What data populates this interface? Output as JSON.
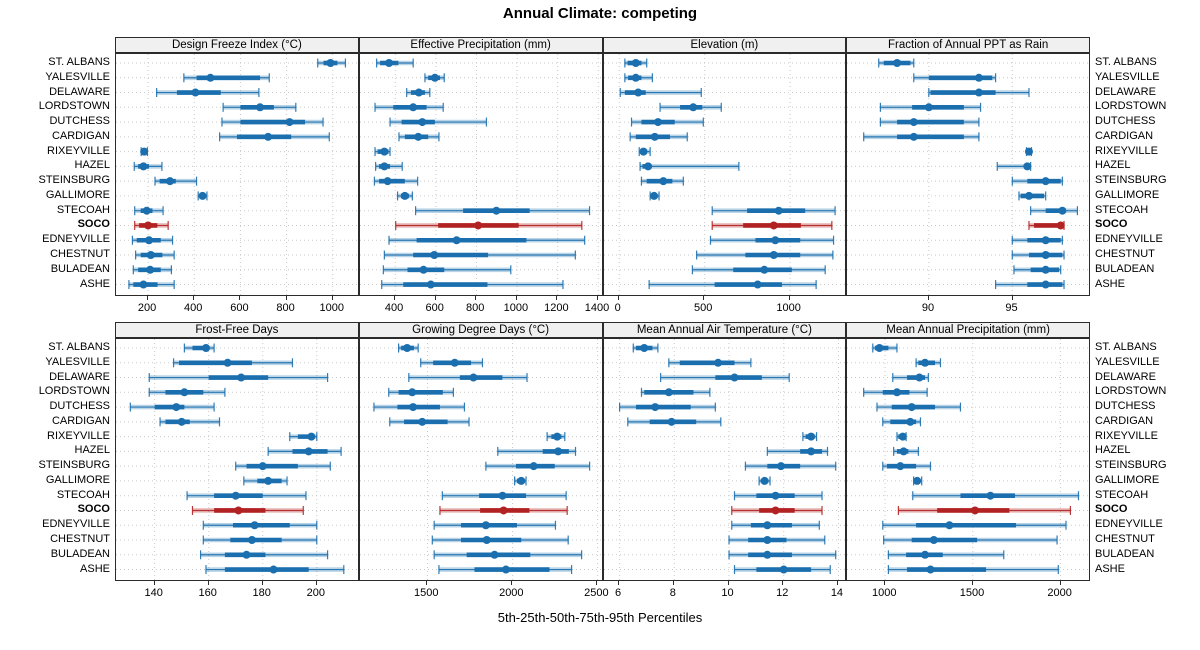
{
  "title": "Annual Climate: competing",
  "xaxis_title": "5th-25th-50th-75th-95th Percentiles",
  "colors": {
    "series": "#1B6FAE",
    "highlight": "#B22222",
    "grid": "#c9c9c9",
    "border": "#2b2b2b",
    "strip_bg": "#f0f0f0"
  },
  "sites": [
    "ST. ALBANS",
    "YALESVILLE",
    "DELAWARE",
    "LORDSTOWN",
    "DUTCHESS",
    "CARDIGAN",
    "RIXEYVILLE",
    "HAZEL",
    "STEINSBURG",
    "GALLIMORE",
    "STECOAH",
    "SOCO",
    "EDNEYVILLE",
    "CHESTNUT",
    "BULADEAN",
    "ASHE"
  ],
  "highlight_site": "SOCO",
  "chart_data": {
    "type": "dotplot-percentiles",
    "percentile_labels": [
      "5th",
      "25th",
      "50th",
      "75th",
      "95th"
    ],
    "layout": {
      "rows": 2,
      "cols": 4,
      "grid": "dotted",
      "legend": "none"
    },
    "panels": [
      {
        "strip": "Design Freeze Index (°C)",
        "ticks": [
          200,
          400,
          600,
          800,
          1000
        ],
        "xlim": [
          61,
          1117
        ],
        "series": [
          [
            935,
            960,
            990,
            1020,
            1055
          ],
          [
            355,
            410,
            470,
            685,
            725
          ],
          [
            237,
            325,
            405,
            515,
            680
          ],
          [
            525,
            600,
            685,
            745,
            840
          ],
          [
            520,
            600,
            813,
            880,
            958
          ],
          [
            510,
            585,
            720,
            820,
            985
          ],
          [
            170,
            176,
            183,
            190,
            197
          ],
          [
            140,
            157,
            180,
            204,
            260
          ],
          [
            230,
            250,
            295,
            320,
            410
          ],
          [
            417,
            425,
            436,
            448,
            455
          ],
          [
            142,
            168,
            194,
            219,
            265
          ],
          [
            142,
            161,
            200,
            240,
            287
          ],
          [
            132,
            151,
            204,
            255,
            306
          ],
          [
            146,
            168,
            212,
            262,
            313
          ],
          [
            136,
            157,
            209,
            255,
            301
          ],
          [
            117,
            136,
            180,
            241,
            313
          ]
        ]
      },
      {
        "strip": "Effective Precipitation (mm)",
        "ticks": [
          400,
          600,
          800,
          1000,
          1200,
          1400
        ],
        "xlim": [
          226,
          1427
        ],
        "series": [
          [
            308,
            325,
            369,
            415,
            488
          ],
          [
            546,
            562,
            595,
            620,
            641
          ],
          [
            456,
            477,
            516,
            546,
            570
          ],
          [
            300,
            390,
            488,
            554,
            636
          ],
          [
            374,
            431,
            533,
            595,
            849
          ],
          [
            418,
            447,
            513,
            562,
            615
          ],
          [
            300,
            313,
            346,
            366,
            374
          ],
          [
            303,
            320,
            346,
            374,
            434
          ],
          [
            297,
            320,
            362,
            447,
            510
          ],
          [
            411,
            428,
            447,
            467,
            484
          ],
          [
            500,
            734,
            898,
            1062,
            1357
          ],
          [
            402,
            611,
            808,
            1008,
            1319
          ],
          [
            369,
            505,
            702,
            1046,
            1333
          ],
          [
            346,
            488,
            592,
            857,
            1287
          ],
          [
            341,
            460,
            539,
            641,
            969
          ],
          [
            333,
            439,
            575,
            854,
            1226
          ]
        ]
      },
      {
        "strip": "Elevation (m)",
        "ticks": [
          0,
          500,
          1000
        ],
        "xlim": [
          -89,
          1337
        ],
        "series": [
          [
            33,
            49,
            97,
            130,
            161
          ],
          [
            33,
            52,
            97,
            130,
            194
          ],
          [
            6,
            33,
            111,
            155,
            480
          ],
          [
            239,
            356,
            433,
            486,
            597
          ],
          [
            72,
            130,
            227,
            325,
            492
          ],
          [
            64,
            97,
            208,
            297,
            398
          ],
          [
            117,
            122,
            142,
            161,
            181
          ],
          [
            122,
            136,
            169,
            185,
            700
          ],
          [
            130,
            161,
            258,
            311,
            375
          ],
          [
            181,
            188,
            204,
            220,
            233
          ],
          [
            544,
            748,
            933,
            1088,
            1263
          ],
          [
            544,
            725,
            904,
            1063,
            1244
          ],
          [
            534,
            797,
            913,
            1059,
            1254
          ],
          [
            453,
            738,
            904,
            1059,
            1250
          ],
          [
            428,
            667,
            849,
            1010,
            1205
          ],
          [
            175,
            558,
            810,
            952,
            1152
          ]
        ]
      },
      {
        "strip": "Fraction of Annual PPT as Rain",
        "ticks": [
          90,
          95
        ],
        "xlim": [
          85.1,
          99.7
        ],
        "series": [
          [
            87.0,
            87.3,
            88.1,
            88.9,
            89.1
          ],
          [
            89.1,
            90.0,
            93.0,
            93.8,
            94.0
          ],
          [
            90.0,
            90.1,
            93.0,
            94.0,
            96.0
          ],
          [
            87.1,
            89.0,
            90.0,
            92.1,
            93.1
          ],
          [
            87.1,
            88.1,
            89.1,
            92.1,
            93.0
          ],
          [
            86.1,
            88.1,
            89.1,
            92.1,
            93.0
          ],
          [
            95.85,
            95.95,
            96.0,
            96.1,
            96.15
          ],
          [
            94.1,
            95.7,
            95.9,
            96.0,
            96.1
          ],
          [
            95.0,
            95.9,
            97.0,
            97.9,
            98.0
          ],
          [
            95.4,
            95.5,
            96.0,
            96.9,
            97.0
          ],
          [
            96.1,
            97.0,
            98.0,
            98.2,
            98.9
          ],
          [
            96.0,
            96.3,
            97.9,
            98.0,
            98.1
          ],
          [
            95.0,
            95.9,
            97.0,
            97.9,
            98.0
          ],
          [
            95.0,
            96.0,
            97.0,
            98.0,
            98.1
          ],
          [
            95.1,
            96.1,
            97.0,
            97.8,
            97.9
          ],
          [
            94.0,
            95.9,
            97.0,
            98.0,
            98.1
          ]
        ]
      },
      {
        "strip": "Frost-Free Days",
        "ticks": [
          140,
          160,
          180,
          200
        ],
        "xlim": [
          125.7,
          215.9
        ],
        "series": [
          [
            151,
            154,
            159,
            160,
            162
          ],
          [
            147,
            149,
            167,
            176,
            191
          ],
          [
            138,
            160,
            172,
            182,
            204
          ],
          [
            138,
            144,
            151,
            158,
            166
          ],
          [
            131,
            140,
            148,
            151,
            162
          ],
          [
            142,
            144,
            150,
            153,
            164
          ],
          [
            190,
            193,
            198,
            199,
            200
          ],
          [
            182,
            191,
            197,
            204,
            209
          ],
          [
            170,
            174,
            180,
            193,
            205
          ],
          [
            173,
            178,
            182,
            187,
            189
          ],
          [
            152,
            162,
            170,
            180,
            196
          ],
          [
            154,
            162,
            171,
            181,
            195
          ],
          [
            158,
            169,
            177,
            190,
            200
          ],
          [
            158,
            168,
            176,
            187,
            200
          ],
          [
            157,
            166,
            174,
            181,
            204
          ],
          [
            159,
            166,
            184,
            197,
            210
          ]
        ]
      },
      {
        "strip": "Growing Degree Days (°C)",
        "ticks": [
          1500,
          2000,
          2500
        ],
        "xlim": [
          1103,
          2536
        ],
        "series": [
          [
            1330,
            1345,
            1380,
            1420,
            1445
          ],
          [
            1460,
            1533,
            1660,
            1756,
            1823
          ],
          [
            1390,
            1690,
            1770,
            1940,
            2085
          ],
          [
            1272,
            1330,
            1410,
            1590,
            1652
          ],
          [
            1185,
            1323,
            1415,
            1573,
            1717
          ],
          [
            1278,
            1362,
            1469,
            1618,
            1744
          ],
          [
            2203,
            2228,
            2262,
            2287,
            2307
          ],
          [
            1913,
            2177,
            2268,
            2331,
            2370
          ],
          [
            1843,
            2020,
            2124,
            2248,
            2453
          ],
          [
            2012,
            2026,
            2051,
            2065,
            2079
          ],
          [
            1587,
            1803,
            1941,
            2079,
            2315
          ],
          [
            1573,
            1809,
            1947,
            2099,
            2321
          ],
          [
            1539,
            1697,
            1843,
            2026,
            2252
          ],
          [
            1528,
            1697,
            1848,
            2051,
            2327
          ],
          [
            1539,
            1730,
            1894,
            2104,
            2406
          ],
          [
            1567,
            1776,
            1961,
            2217,
            2347
          ]
        ]
      },
      {
        "strip": "Mean Annual Air Temperature (°C)",
        "ticks": [
          6,
          8,
          10,
          12,
          14
        ],
        "xlim": [
          5.43,
          14.34
        ],
        "series": [
          [
            6.5,
            6.6,
            6.9,
            7.2,
            7.4
          ],
          [
            7.8,
            8.2,
            9.6,
            10.2,
            10.8
          ],
          [
            7.5,
            9.5,
            10.2,
            11.2,
            12.2
          ],
          [
            6.8,
            6.9,
            7.8,
            8.7,
            9.3
          ],
          [
            6.0,
            6.6,
            7.3,
            8.6,
            9.5
          ],
          [
            6.3,
            7.1,
            7.9,
            8.8,
            9.7
          ],
          [
            12.7,
            12.8,
            13.0,
            13.1,
            13.2
          ],
          [
            11.4,
            12.6,
            13.0,
            13.4,
            13.6
          ],
          [
            10.6,
            11.4,
            11.9,
            12.6,
            13.9
          ],
          [
            11.1,
            11.2,
            11.3,
            11.4,
            11.5
          ],
          [
            10.2,
            11.0,
            11.7,
            12.4,
            13.4
          ],
          [
            10.1,
            11.1,
            11.7,
            12.4,
            13.4
          ],
          [
            10.1,
            10.8,
            11.4,
            12.3,
            13.3
          ],
          [
            10.0,
            10.7,
            11.4,
            12.1,
            13.5
          ],
          [
            10.0,
            10.7,
            11.4,
            12.3,
            13.9
          ],
          [
            10.2,
            11.0,
            12.0,
            13.0,
            13.7
          ]
        ]
      },
      {
        "strip": "Mean Annual Precipitation (mm)",
        "ticks": [
          1000,
          1500,
          2000
        ],
        "xlim": [
          783,
          2173
        ],
        "series": [
          [
            930,
            943,
            968,
            1019,
            1068
          ],
          [
            1177,
            1190,
            1228,
            1285,
            1316
          ],
          [
            1044,
            1125,
            1196,
            1228,
            1247
          ],
          [
            878,
            987,
            1068,
            1139,
            1240
          ],
          [
            954,
            1038,
            1152,
            1285,
            1430
          ],
          [
            987,
            1030,
            1144,
            1177,
            1202
          ],
          [
            1068,
            1076,
            1101,
            1114,
            1120
          ],
          [
            1049,
            1068,
            1106,
            1133,
            1190
          ],
          [
            987,
            1011,
            1087,
            1177,
            1259
          ],
          [
            1163,
            1171,
            1183,
            1196,
            1209
          ],
          [
            1158,
            1430,
            1601,
            1741,
            2103
          ],
          [
            1076,
            1297,
            1513,
            1709,
            2057
          ],
          [
            987,
            1177,
            1367,
            1747,
            2032
          ],
          [
            992,
            1152,
            1278,
            1525,
            1981
          ],
          [
            1019,
            1120,
            1228,
            1329,
            1677
          ],
          [
            1019,
            1125,
            1259,
            1576,
            1988
          ]
        ]
      }
    ]
  }
}
